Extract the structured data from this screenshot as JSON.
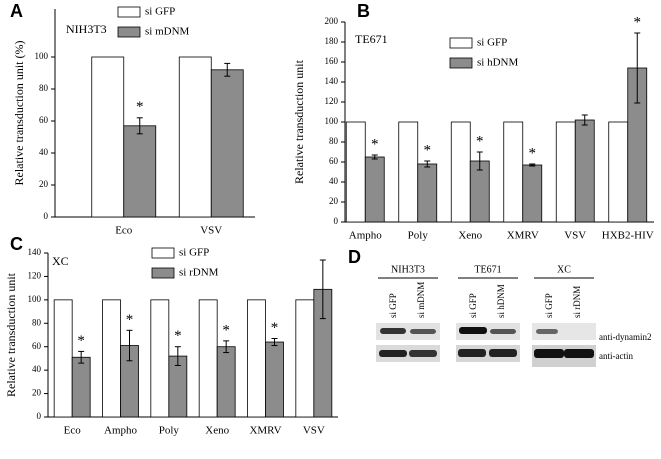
{
  "chart_data": [
    {
      "type": "bar",
      "panel": "A",
      "title": "NIH3T3",
      "y_label": "Relative transduction unit (%)",
      "categories": [
        "Eco",
        "VSV"
      ],
      "series": [
        {
          "name": "si GFP",
          "color": "#ffffff",
          "values": [
            100,
            100
          ]
        },
        {
          "name": "si mDNM",
          "color": "#8c8c8c",
          "values": [
            57,
            92
          ],
          "errors": [
            5,
            4
          ],
          "annotations": [
            "*",
            null
          ]
        }
      ],
      "ylim": [
        0,
        130
      ],
      "yticks": [
        0,
        20,
        40,
        60,
        80,
        100
      ]
    },
    {
      "type": "bar",
      "panel": "B",
      "title": "TE671",
      "y_label": "Relative transduction unit",
      "categories": [
        "Ampho",
        "Poly",
        "Xeno",
        "XMRV",
        "VSV",
        "HXB2-HIV"
      ],
      "series": [
        {
          "name": "si GFP",
          "color": "#ffffff",
          "values": [
            100,
            100,
            100,
            100,
            100,
            100
          ]
        },
        {
          "name": "si hDNM",
          "color": "#8c8c8c",
          "values": [
            65,
            58,
            61,
            57,
            102,
            154
          ],
          "errors": [
            2,
            3,
            9,
            1,
            5,
            35
          ],
          "annotations": [
            "*",
            "*",
            "*",
            "*",
            null,
            "*"
          ]
        }
      ],
      "ylim": [
        0,
        200
      ],
      "yticks": [
        0,
        20,
        40,
        60,
        80,
        100,
        120,
        140,
        160,
        180,
        200
      ]
    },
    {
      "type": "bar",
      "panel": "C",
      "title": "XC",
      "y_label": "Relative transduction unit",
      "categories": [
        "Eco",
        "Ampho",
        "Poly",
        "Xeno",
        "XMRV",
        "VSV"
      ],
      "series": [
        {
          "name": "si GFP",
          "color": "#ffffff",
          "values": [
            100,
            100,
            100,
            100,
            100,
            100
          ]
        },
        {
          "name": "si rDNM",
          "color": "#8c8c8c",
          "values": [
            51,
            61,
            52,
            60,
            64,
            109
          ],
          "errors": [
            5,
            13,
            8,
            5,
            3,
            25
          ],
          "annotations": [
            "*",
            "*",
            "*",
            "*",
            "*",
            null
          ]
        }
      ],
      "ylim": [
        0,
        140
      ],
      "yticks": [
        0,
        20,
        40,
        60,
        80,
        100,
        120,
        140
      ]
    }
  ],
  "blot": {
    "panel": "D",
    "groups": [
      {
        "cell_line": "NIH3T3",
        "lanes": [
          "si GFP",
          "si mDNM"
        ]
      },
      {
        "cell_line": "TE671",
        "lanes": [
          "si GFP",
          "si hDNM"
        ]
      },
      {
        "cell_line": "XC",
        "lanes": [
          "si GFP",
          "si rDNM"
        ]
      }
    ],
    "rows": [
      "anti-dynamin2",
      "anti-actin"
    ]
  }
}
